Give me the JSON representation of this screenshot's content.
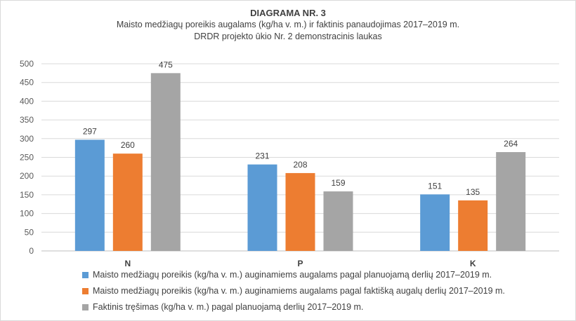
{
  "header": {
    "title": "DIAGRAMA NR. 3",
    "subtitle_line1": "Maisto medžiagų poreikis augalams (kg/ha v. m.) ir faktinis panaudojimas 2017–2019 m.",
    "subtitle_line2": "DRDR projekto ūkio Nr. 2 demonstracinis laukas"
  },
  "chart_data": {
    "type": "bar",
    "title": "DIAGRAMA NR. 3",
    "subtitle": "Maisto medžiagų poreikis augalams (kg/ha v. m.) ir faktinis panaudojimas 2017–2019 m. DRDR projekto ūkio Nr. 2 demonstracinis laukas",
    "categories": [
      "N",
      "P",
      "K"
    ],
    "series": [
      {
        "name": "Maisto medžiagų poreikis (kg/ha v. m.) auginamiems augalams pagal planuojamą derlių  2017–2019 m.",
        "values": [
          297,
          231,
          151
        ],
        "color": "#5b9bd5"
      },
      {
        "name": "Maisto medžiagų poreikis (kg/ha v. m.) auginamiems augalams pagal faktišką augalų derlių  2017–2019 m.",
        "values": [
          260,
          208,
          135
        ],
        "color": "#ed7d31"
      },
      {
        "name": "Faktinis tręšimas (kg/ha v. m.) pagal planuojamą derlių 2017–2019 m.",
        "values": [
          475,
          159,
          264
        ],
        "color": "#a5a5a5"
      }
    ],
    "yticks": [
      0,
      50,
      100,
      150,
      200,
      250,
      300,
      350,
      400,
      450,
      500
    ],
    "ylim": [
      0,
      500
    ],
    "xlabel": "",
    "ylabel": "",
    "grid": true,
    "legend": "bottom"
  }
}
